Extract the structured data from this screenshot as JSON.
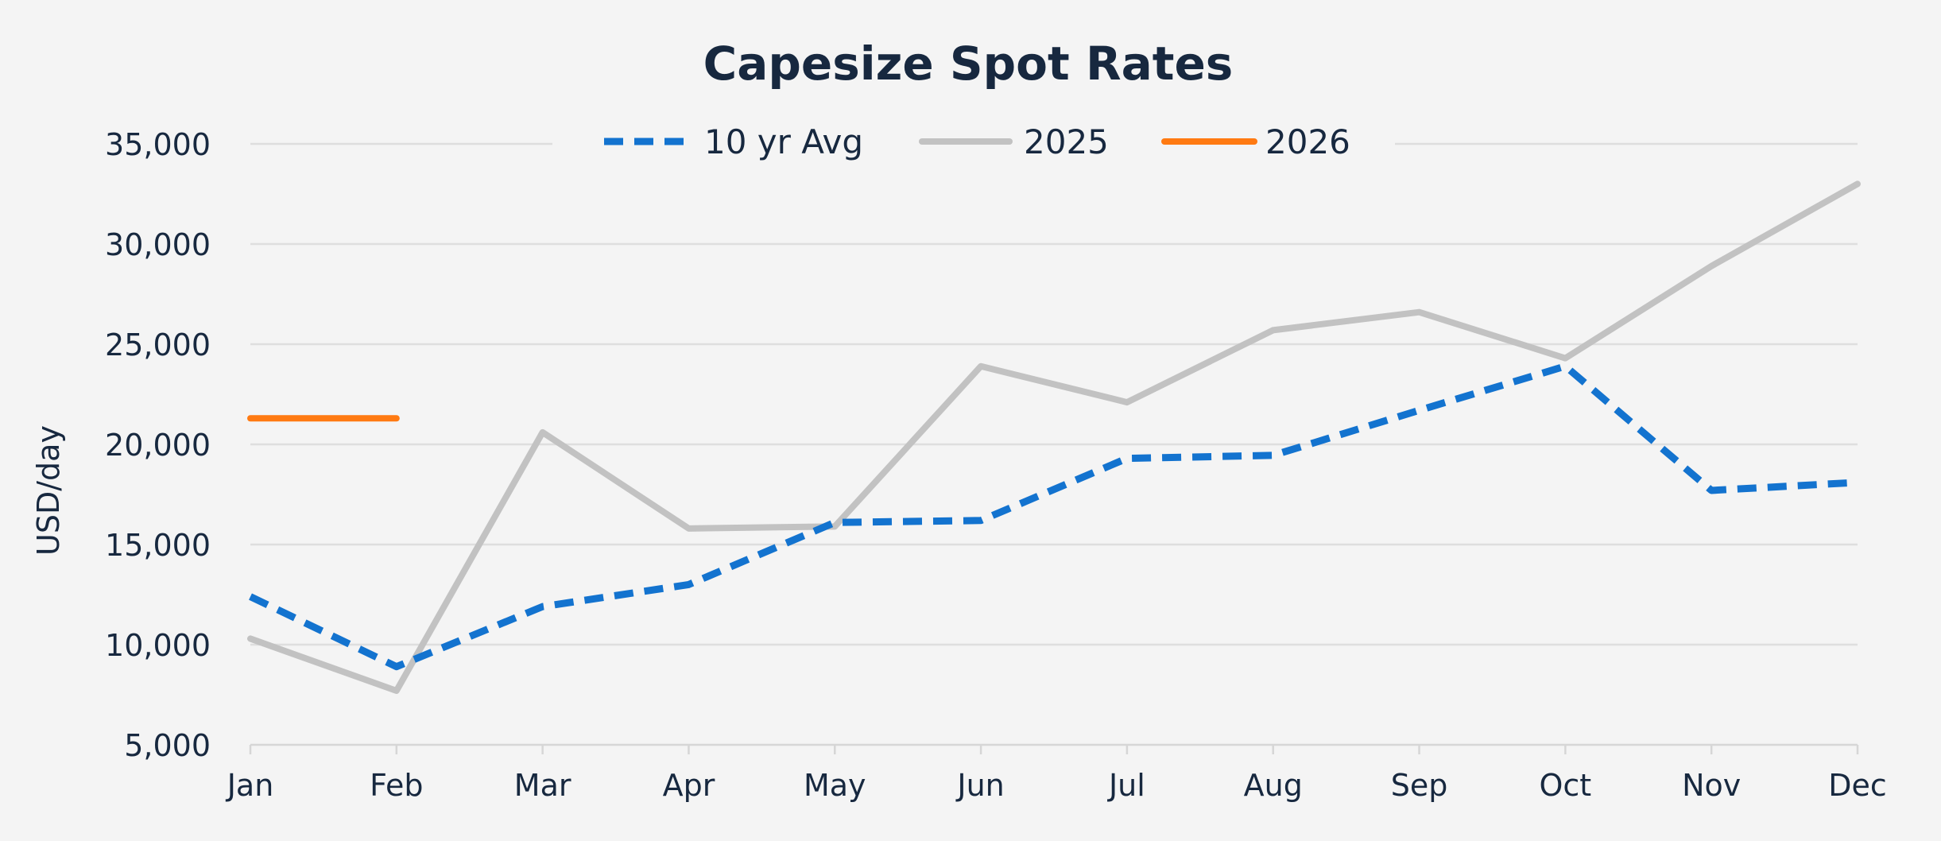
{
  "chart_data": {
    "type": "line",
    "title": "Capesize Spot Rates",
    "xlabel": "",
    "ylabel": "USD/day",
    "ylim": [
      5000,
      35000
    ],
    "yticks": [
      5000,
      10000,
      15000,
      20000,
      25000,
      30000,
      35000
    ],
    "ytick_labels": [
      "5,000",
      "10,000",
      "15,000",
      "20,000",
      "25,000",
      "30,000",
      "35,000"
    ],
    "categories": [
      "Jan",
      "Feb",
      "Mar",
      "Apr",
      "May",
      "Jun",
      "Jul",
      "Aug",
      "Sep",
      "Oct",
      "Nov",
      "Dec"
    ],
    "grid": true,
    "legend_position": "top-center",
    "series": [
      {
        "name": "10 yr Avg",
        "style": "dashed",
        "color": "#1373cf",
        "values": [
          12400,
          8900,
          11900,
          13000,
          16100,
          16200,
          19300,
          19450,
          21700,
          23900,
          17700,
          18100
        ]
      },
      {
        "name": "2025",
        "style": "solid",
        "color": "#c2c2c2",
        "values": [
          10300,
          7700,
          20600,
          15800,
          15900,
          23900,
          22100,
          25700,
          26600,
          24300,
          28900,
          33000
        ]
      },
      {
        "name": "2026",
        "style": "solid",
        "color": "#ff7a12",
        "values": [
          21300,
          21300,
          null,
          null,
          null,
          null,
          null,
          null,
          null,
          null,
          null,
          null
        ]
      }
    ]
  }
}
